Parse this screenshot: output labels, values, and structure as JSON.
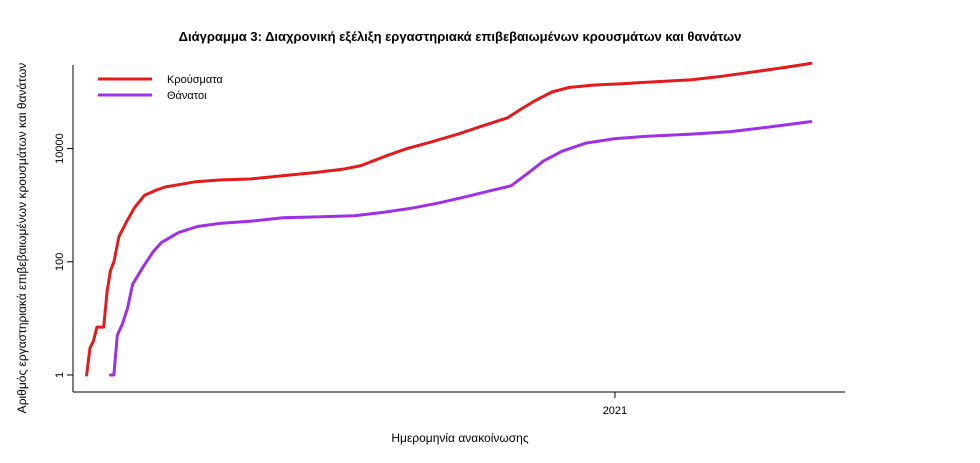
{
  "chart_data": {
    "type": "line",
    "title": "Διάγραμμα 3: Διαχρονική εξέλιξη εργαστηριακά επιβεβαιωμένων κρουσμάτων και θανάτων",
    "xlabel": "Ημερομηνία ανακοίνωσης",
    "ylabel": "Αριθμός εργαστηριακά επιβεβαιωμένων κρουσμάτων και θανάτων",
    "y_scale": "log10",
    "ylim": [
      0.5,
      300000
    ],
    "y_ticks": [
      {
        "value": 1,
        "label": "1"
      },
      {
        "value": 100,
        "label": "100"
      },
      {
        "value": 10000,
        "label": "10000"
      }
    ],
    "xlim": [
      "2020-02-18",
      "2021-05-16"
    ],
    "x_ticks": [
      {
        "value": "2021-01-01",
        "label": "2021"
      }
    ],
    "legend_position": "top-left",
    "series": [
      {
        "name": "Κρούσματα",
        "color": "#e41a1c",
        "points": [
          [
            "2020-02-26",
            1
          ],
          [
            "2020-02-28",
            3
          ],
          [
            "2020-03-01",
            4
          ],
          [
            "2020-03-03",
            7
          ],
          [
            "2020-03-05",
            7
          ],
          [
            "2020-03-07",
            7
          ],
          [
            "2020-03-09",
            30
          ],
          [
            "2020-03-11",
            70
          ],
          [
            "2020-03-13",
            100
          ],
          [
            "2020-03-16",
            280
          ],
          [
            "2020-03-20",
            480
          ],
          [
            "2020-03-25",
            900
          ],
          [
            "2020-03-31",
            1500
          ],
          [
            "2020-04-06",
            1800
          ],
          [
            "2020-04-12",
            2100
          ],
          [
            "2020-04-20",
            2300
          ],
          [
            "2020-04-30",
            2600
          ],
          [
            "2020-05-15",
            2800
          ],
          [
            "2020-06-01",
            2900
          ],
          [
            "2020-06-20",
            3300
          ],
          [
            "2020-07-10",
            3800
          ],
          [
            "2020-07-25",
            4300
          ],
          [
            "2020-08-05",
            5000
          ],
          [
            "2020-08-20",
            7500
          ],
          [
            "2020-09-01",
            10000
          ],
          [
            "2020-09-15",
            13000
          ],
          [
            "2020-10-01",
            18000
          ],
          [
            "2020-10-15",
            25000
          ],
          [
            "2020-10-30",
            35000
          ],
          [
            "2020-11-07",
            50000
          ],
          [
            "2020-11-15",
            70000
          ],
          [
            "2020-11-25",
            100000
          ],
          [
            "2020-12-05",
            120000
          ],
          [
            "2020-12-20",
            133000
          ],
          [
            "2021-01-05",
            140000
          ],
          [
            "2021-01-25",
            152000
          ],
          [
            "2021-02-15",
            165000
          ],
          [
            "2021-03-05",
            190000
          ],
          [
            "2021-03-25",
            230000
          ],
          [
            "2021-04-10",
            270000
          ],
          [
            "2021-04-26",
            320000
          ]
        ]
      },
      {
        "name": "Θάνατοι",
        "color": "#a030e6",
        "points": [
          [
            "2020-03-11",
            1
          ],
          [
            "2020-03-13",
            1
          ],
          [
            "2020-03-15",
            5
          ],
          [
            "2020-03-18",
            8
          ],
          [
            "2020-03-21",
            15
          ],
          [
            "2020-03-24",
            40
          ],
          [
            "2020-03-30",
            80
          ],
          [
            "2020-04-05",
            150
          ],
          [
            "2020-04-10",
            220
          ],
          [
            "2020-04-20",
            330
          ],
          [
            "2020-05-01",
            420
          ],
          [
            "2020-05-15",
            480
          ],
          [
            "2020-06-01",
            520
          ],
          [
            "2020-06-20",
            600
          ],
          [
            "2020-07-10",
            620
          ],
          [
            "2020-08-01",
            650
          ],
          [
            "2020-08-20",
            760
          ],
          [
            "2020-09-05",
            900
          ],
          [
            "2020-09-20",
            1100
          ],
          [
            "2020-10-05",
            1400
          ],
          [
            "2020-10-20",
            1800
          ],
          [
            "2020-11-01",
            2200
          ],
          [
            "2020-11-10",
            3500
          ],
          [
            "2020-11-20",
            6000
          ],
          [
            "2020-12-01",
            9000
          ],
          [
            "2020-12-15",
            12500
          ],
          [
            "2021-01-01",
            15000
          ],
          [
            "2021-01-20",
            16500
          ],
          [
            "2021-02-15",
            18000
          ],
          [
            "2021-03-10",
            20000
          ],
          [
            "2021-04-01",
            24000
          ],
          [
            "2021-04-26",
            30000
          ]
        ]
      }
    ]
  }
}
